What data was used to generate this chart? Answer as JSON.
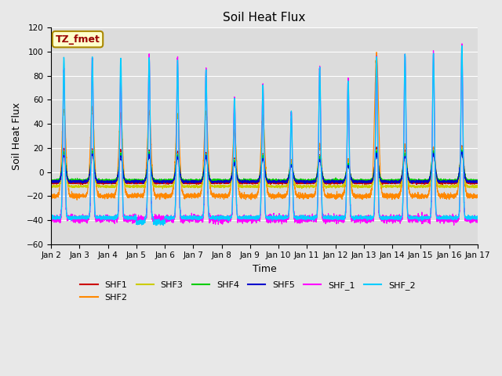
{
  "title": "Soil Heat Flux",
  "xlabel": "Time",
  "ylabel": "Soil Heat Flux",
  "ylim": [
    -60,
    120
  ],
  "yticks": [
    -60,
    -40,
    -20,
    0,
    20,
    40,
    60,
    80,
    100,
    120
  ],
  "xlim": [
    0,
    15
  ],
  "xtick_labels": [
    "Jan 2",
    "Jan 3",
    "Jan 4",
    "Jan 5",
    "Jan 6",
    "Jan 7",
    "Jan 8",
    "Jan 9",
    "Jan 10",
    "Jan 11",
    "Jan 12",
    "Jan 13",
    "Jan 14",
    "Jan 15",
    "Jan 16",
    "Jan 17"
  ],
  "series_colors": {
    "SHF1": "#cc0000",
    "SHF2": "#ff8800",
    "SHF3": "#cccc00",
    "SHF4": "#00cc00",
    "SHF5": "#0000cc",
    "SHF_1": "#ff00ff",
    "SHF_2": "#00ccff"
  },
  "annotation_text": "TZ_fmet",
  "annotation_bbox_face": "#ffffcc",
  "annotation_bbox_edge": "#aa8800",
  "background_color": "#e8e8e8",
  "plot_bg_color": "#dcdcdc",
  "n_days": 15,
  "n_points_per_day": 288,
  "seed": 42,
  "day_peaks_shf2": [
    52,
    53,
    48,
    50,
    48,
    50,
    34,
    46,
    10,
    22,
    10,
    98,
    22,
    20,
    21
  ],
  "day_peaks_shf1": [
    19,
    19,
    18,
    18,
    17,
    16,
    11,
    15,
    8,
    14,
    8,
    20,
    18,
    20,
    21
  ],
  "day_peaks_shf4": [
    16,
    17,
    15,
    16,
    14,
    14,
    9,
    13,
    6,
    12,
    6,
    17,
    15,
    17,
    18
  ],
  "day_peaks_shf5": [
    14,
    15,
    13,
    14,
    12,
    12,
    7,
    11,
    5,
    10,
    5,
    15,
    13,
    15,
    16
  ],
  "day_peaks_shf3": [
    17,
    18,
    16,
    17,
    15,
    15,
    10,
    14,
    7,
    13,
    7,
    18,
    16,
    18,
    19
  ],
  "day_peaks_shf_1": [
    85,
    96,
    82,
    95,
    93,
    85,
    62,
    73,
    50,
    87,
    76,
    95,
    98,
    99,
    105
  ],
  "day_peaks_cyan": [
    95,
    96,
    95,
    95,
    93,
    85,
    62,
    73,
    50,
    87,
    76,
    95,
    98,
    99,
    105
  ]
}
